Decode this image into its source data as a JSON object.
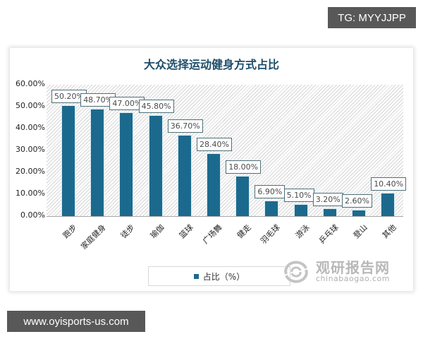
{
  "badges": {
    "tg": "TG: MYYJJPP",
    "site": "www.oyisports-us.com"
  },
  "legend": {
    "label": "占比（%）"
  },
  "watermark": {
    "cn": "观研报告网",
    "en": "chinabaogao.com"
  },
  "colors": {
    "bar": "#1b6a8e",
    "title": "#1f4e6b",
    "label_border": "#4d6f78",
    "badge_bg": "#585858"
  },
  "chart_data": {
    "type": "bar",
    "title": "大众选择运动健身方式占比",
    "xlabel": "",
    "ylabel": "",
    "ylim": [
      0,
      60
    ],
    "y_ticks": [
      "0.00%",
      "10.00%",
      "20.00%",
      "30.00%",
      "40.00%",
      "50.00%",
      "60.00%"
    ],
    "grid": false,
    "legend_position": "bottom",
    "categories": [
      "跑步",
      "家庭健身",
      "徒步",
      "瑜伽",
      "篮球",
      "广场舞",
      "健走",
      "羽毛球",
      "游泳",
      "乒乓球",
      "登山",
      "其他"
    ],
    "series": [
      {
        "name": "占比（%）",
        "values": [
          50.2,
          48.7,
          47.0,
          45.8,
          36.7,
          28.4,
          18.0,
          6.9,
          5.1,
          3.2,
          2.6,
          10.4
        ],
        "labels": [
          "50.20%",
          "48.70%",
          "47.00%",
          "45.80%",
          "36.70%",
          "28.40%",
          "18.00%",
          "6.90%",
          "5.10%",
          "3.20%",
          "2.60%",
          "10.40%"
        ]
      }
    ]
  }
}
